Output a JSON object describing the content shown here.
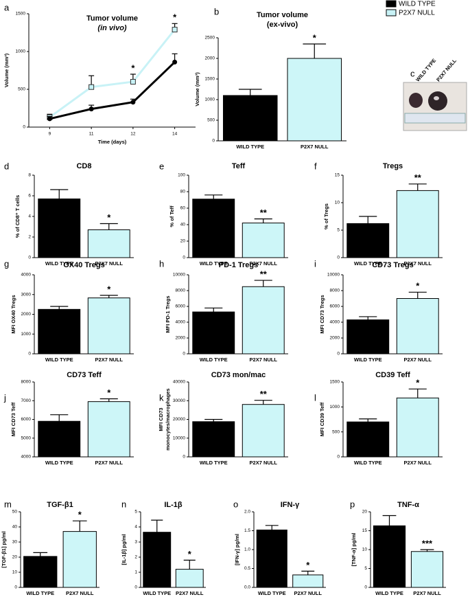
{
  "chart_data": [
    {
      "type": "line",
      "panel": "a",
      "title": "Tumor volume",
      "subtitle": "(in vivo)",
      "xlabel": "Time (days)",
      "ylabel": "Volume (mm³)",
      "categories": [
        "9",
        "11",
        "12",
        "14"
      ],
      "series": [
        {
          "name": "WILD TYPE",
          "color": "#000000",
          "values": [
            110,
            240,
            330,
            860
          ],
          "errors": [
            30,
            50,
            40,
            110
          ]
        },
        {
          "name": "P2X7 NULL",
          "color": "#c8f2f6",
          "values": [
            130,
            530,
            600,
            1290
          ],
          "errors": [
            40,
            150,
            100,
            80
          ]
        }
      ],
      "annotations": [
        null,
        null,
        "*",
        "*"
      ],
      "ylim": [
        0,
        1500
      ],
      "yticks": [
        0,
        500,
        1000,
        1500
      ]
    },
    {
      "type": "bar",
      "panel": "b",
      "title": "Tumor volume",
      "subtitle": "(ex-vivo)",
      "ylabel": "Volume (mm³)",
      "categories": [
        "WILD TYPE",
        "P2X7 NULL"
      ],
      "values": [
        1100,
        2000
      ],
      "errors": [
        150,
        350
      ],
      "colors": [
        "#000000",
        "#cdf6f8"
      ],
      "ylim": [
        0,
        2500
      ],
      "yticks": [
        0,
        500,
        1000,
        1500,
        2000,
        2500
      ],
      "annotation": "*"
    },
    {
      "type": "image",
      "panel": "c",
      "labels": [
        "WILD TYPE",
        "P2X7 NULL"
      ]
    },
    {
      "type": "bar",
      "panel": "d",
      "title": "CD8",
      "ylabel": "% of CD8⁺ T cells",
      "categories": [
        "WILD TYPE",
        "P2X7 NULL"
      ],
      "values": [
        5.7,
        2.7
      ],
      "errors": [
        0.9,
        0.6
      ],
      "colors": [
        "#000000",
        "#cdf6f8"
      ],
      "ylim": [
        0,
        8
      ],
      "yticks": [
        0,
        2,
        4,
        6,
        8
      ],
      "annotation": "*"
    },
    {
      "type": "bar",
      "panel": "e",
      "title": "Teff",
      "ylabel": "% of Teff",
      "categories": [
        "WILD TYPE",
        "P2X7 NULL"
      ],
      "values": [
        71,
        42
      ],
      "errors": [
        5,
        5
      ],
      "colors": [
        "#000000",
        "#cdf6f8"
      ],
      "ylim": [
        0,
        100
      ],
      "yticks": [
        0,
        20,
        40,
        60,
        80,
        100
      ],
      "annotation": "**"
    },
    {
      "type": "bar",
      "panel": "f",
      "title": "Tregs",
      "ylabel": "% of Tregs",
      "categories": [
        "WILD TYPE",
        "P2X7 NULL"
      ],
      "values": [
        6.2,
        12.2
      ],
      "errors": [
        1.3,
        1.2
      ],
      "colors": [
        "#000000",
        "#cdf6f8"
      ],
      "ylim": [
        0,
        15
      ],
      "yticks": [
        0,
        5,
        10,
        15
      ],
      "annotation": "**"
    },
    {
      "type": "bar",
      "panel": "g",
      "title": "OX40 Tregs",
      "ylabel": "MFI OX40 Tregs",
      "categories": [
        "WILD TYPE",
        "P2X7 NULL"
      ],
      "values": [
        2250,
        2830
      ],
      "errors": [
        150,
        130
      ],
      "colors": [
        "#000000",
        "#cdf6f8"
      ],
      "ylim": [
        0,
        4000
      ],
      "yticks": [
        0,
        1000,
        2000,
        3000,
        4000
      ],
      "annotation": "*"
    },
    {
      "type": "bar",
      "panel": "h",
      "title": "PD-1 Tregs",
      "ylabel": "MFI PD-1 Tregs",
      "categories": [
        "WILD TYPE",
        "P2X7 NULL"
      ],
      "values": [
        5300,
        8500
      ],
      "errors": [
        500,
        800
      ],
      "colors": [
        "#000000",
        "#cdf6f8"
      ],
      "ylim": [
        0,
        10000
      ],
      "yticks": [
        0,
        2000,
        4000,
        6000,
        8000,
        10000
      ],
      "annotation": "**"
    },
    {
      "type": "bar",
      "panel": "i",
      "title": "CD73 Tregs",
      "ylabel": "MFI CD73 Tregs",
      "categories": [
        "WILD TYPE",
        "P2X7 NULL"
      ],
      "values": [
        4300,
        7000
      ],
      "errors": [
        400,
        800
      ],
      "colors": [
        "#000000",
        "#cdf6f8"
      ],
      "ylim": [
        0,
        10000
      ],
      "yticks": [
        0,
        2000,
        4000,
        6000,
        8000,
        10000
      ],
      "annotation": "*"
    },
    {
      "type": "bar",
      "panel": "j",
      "title": "CD73 Teff",
      "ylabel": "MFI CD73 Teff",
      "categories": [
        "WILD TYPE",
        "P2X7 NULL"
      ],
      "values": [
        5900,
        6950
      ],
      "errors": [
        350,
        150
      ],
      "colors": [
        "#000000",
        "#cdf6f8"
      ],
      "ylim": [
        4000,
        8000
      ],
      "yticks": [
        4000,
        5000,
        6000,
        7000,
        8000
      ],
      "annotation": "*"
    },
    {
      "type": "bar",
      "panel": "k",
      "title": "CD73 mon/mac",
      "ylabel": [
        "MFI CD73",
        "monocytes/macrophages"
      ],
      "categories": [
        "WILD TYPE",
        "P2X7 NULL"
      ],
      "values": [
        18800,
        28000
      ],
      "errors": [
        1200,
        2200
      ],
      "colors": [
        "#000000",
        "#cdf6f8"
      ],
      "ylim": [
        0,
        40000
      ],
      "yticks": [
        0,
        10000,
        20000,
        30000,
        40000
      ],
      "annotation": "**"
    },
    {
      "type": "bar",
      "panel": "l",
      "title": "CD39 Teff",
      "ylabel": "MFI CD39 Teff",
      "categories": [
        "WILD TYPE",
        "P2X7 NULL"
      ],
      "values": [
        700,
        1180
      ],
      "errors": [
        60,
        180
      ],
      "colors": [
        "#000000",
        "#cdf6f8"
      ],
      "ylim": [
        0,
        1500
      ],
      "yticks": [
        0,
        500,
        1000,
        1500
      ],
      "annotation": "*"
    },
    {
      "type": "bar",
      "panel": "m",
      "title": "TGF-β1",
      "ylabel": "[TGF-β1] pg/ml",
      "categories": [
        "WILD TYPE",
        "P2X7 NULL"
      ],
      "values": [
        20.5,
        37
      ],
      "errors": [
        2.5,
        7
      ],
      "colors": [
        "#000000",
        "#cdf6f8"
      ],
      "ylim": [
        0,
        50
      ],
      "yticks": [
        0,
        10,
        20,
        30,
        40,
        50
      ],
      "annotation": "*"
    },
    {
      "type": "bar",
      "panel": "n",
      "title": "IL-1β",
      "ylabel": "[IL-1β] pg/ml",
      "categories": [
        "WILD TYPE",
        "P2X7 NULL"
      ],
      "values": [
        3.65,
        1.2
      ],
      "errors": [
        0.8,
        0.6
      ],
      "colors": [
        "#000000",
        "#cdf6f8"
      ],
      "ylim": [
        0,
        5
      ],
      "yticks": [
        0,
        1,
        2,
        3,
        4,
        5
      ],
      "annotation": "*"
    },
    {
      "type": "bar",
      "panel": "o",
      "title": "IFN-γ",
      "ylabel": "[IFN-γ] pg/ml",
      "categories": [
        "WILD TYPE",
        "P2X7 NULL"
      ],
      "values": [
        1.52,
        0.33
      ],
      "errors": [
        0.12,
        0.1
      ],
      "colors": [
        "#000000",
        "#cdf6f8"
      ],
      "ylim": [
        0,
        2
      ],
      "yticks": [
        {
          "value": 0,
          "label": "0.0"
        },
        0.5,
        {
          "value": 1,
          "label": "1.0"
        },
        1.5,
        {
          "value": 2,
          "label": "2.0"
        }
      ],
      "annotation": "*"
    },
    {
      "type": "bar",
      "panel": "p",
      "title": "TNF-α",
      "ylabel": "[TNF-α] pg/ml",
      "categories": [
        "WILD TYPE",
        "P2X7 NULL"
      ],
      "values": [
        16.3,
        9.5
      ],
      "errors": [
        2.7,
        0.5
      ],
      "colors": [
        "#000000",
        "#cdf6f8"
      ],
      "ylim": [
        0,
        20
      ],
      "yticks": [
        0,
        5,
        10,
        15,
        20
      ],
      "annotation": "***"
    }
  ]
}
